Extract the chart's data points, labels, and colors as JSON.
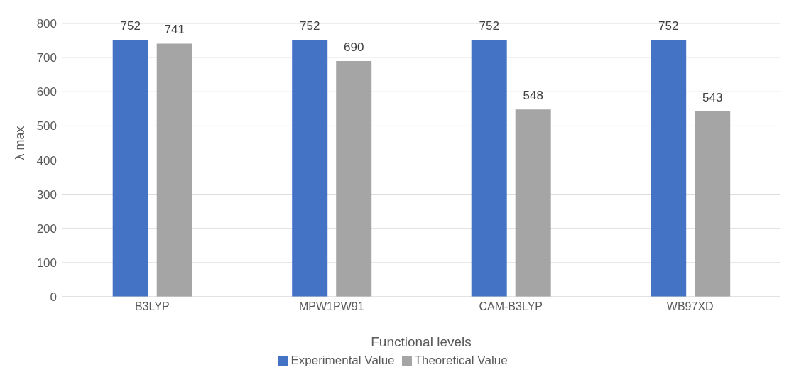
{
  "chart_data": {
    "type": "bar",
    "xlabel": "Functional levels",
    "ylabel": "λ max",
    "categories": [
      "B3LYP",
      "MPW1PW91",
      "CAM-B3LYP",
      "WB97XD"
    ],
    "series": [
      {
        "name": "Experimental Value",
        "color": "#4472c4",
        "values": [
          752,
          752,
          752,
          752
        ]
      },
      {
        "name": "Theoretical Value",
        "color": "#a5a5a5",
        "values": [
          741,
          690,
          548,
          543
        ]
      }
    ],
    "ylim": [
      0,
      800
    ],
    "yticks": [
      0,
      100,
      200,
      300,
      400,
      500,
      600,
      700,
      800
    ],
    "grid": "y",
    "legend": "bottom",
    "data_labels": true
  }
}
